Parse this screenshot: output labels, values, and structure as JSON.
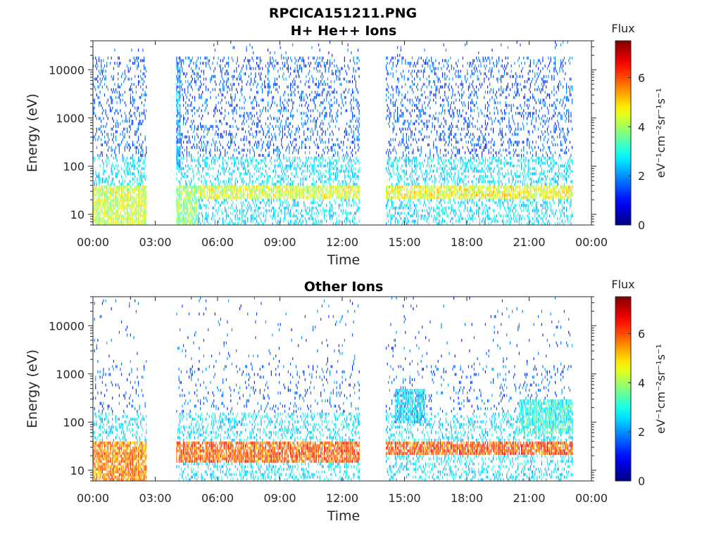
{
  "figure_title": "RPCICA151211.PNG",
  "chart_data": [
    {
      "type": "heatmap",
      "title": "H+ He++ Ions",
      "xlabel": "Time",
      "ylabel": "Energy (eV)",
      "x_tick_labels": [
        "00:00",
        "03:00",
        "06:00",
        "09:00",
        "12:00",
        "15:00",
        "18:00",
        "21:00",
        "00:00"
      ],
      "x_range_hours": [
        0,
        24
      ],
      "y_scale": "log",
      "y_range": [
        6,
        40000
      ],
      "y_tick_values": [
        10,
        100,
        1000,
        10000
      ],
      "y_tick_labels": [
        "10",
        "100",
        "1000",
        "10000"
      ],
      "colorbar": {
        "title": "Flux",
        "label": "eV⁻¹cm⁻²sr⁻¹s⁻¹",
        "range": [
          0,
          7.5
        ],
        "tick_values": [
          0,
          2,
          4,
          6
        ],
        "tick_labels": [
          "0",
          "2",
          "4",
          "6"
        ],
        "colormap": "jet"
      },
      "data_gaps_hours": [
        [
          2.6,
          4.0
        ],
        [
          12.85,
          14.05
        ]
      ],
      "data_end_hours": 23.1,
      "bands": [
        {
          "t0": 0.0,
          "t1": 2.6,
          "e0": 6,
          "e1": 40,
          "flux": 4.3
        },
        {
          "t0": 4.0,
          "t1": 5.0,
          "e0": 6,
          "e1": 40,
          "flux": 3.8
        },
        {
          "t0": 5.0,
          "t1": 12.85,
          "e0": 20,
          "e1": 40,
          "flux": 4.4
        },
        {
          "t0": 14.05,
          "t1": 23.1,
          "e0": 20,
          "e1": 40,
          "flux": 4.6
        },
        {
          "t0": 4.0,
          "t1": 4.2,
          "e0": 100,
          "e1": 20000,
          "flux": 2.0
        }
      ]
    },
    {
      "type": "heatmap",
      "title": "Other Ions",
      "xlabel": "Time",
      "ylabel": "Energy (eV)",
      "x_tick_labels": [
        "00:00",
        "03:00",
        "06:00",
        "09:00",
        "12:00",
        "15:00",
        "18:00",
        "21:00",
        "00:00"
      ],
      "x_range_hours": [
        0,
        24
      ],
      "y_scale": "log",
      "y_range": [
        6,
        40000
      ],
      "y_tick_values": [
        10,
        100,
        1000,
        10000
      ],
      "y_tick_labels": [
        "10",
        "100",
        "1000",
        "10000"
      ],
      "colorbar": {
        "title": "Flux",
        "label": "eV⁻¹cm⁻²sr⁻¹s⁻¹",
        "range": [
          0,
          7.5
        ],
        "tick_values": [
          0,
          2,
          4,
          6
        ],
        "tick_labels": [
          "0",
          "2",
          "4",
          "6"
        ],
        "colormap": "jet"
      },
      "data_gaps_hours": [
        [
          2.6,
          4.0
        ],
        [
          12.85,
          14.05
        ]
      ],
      "data_end_hours": 23.1,
      "bands": [
        {
          "t0": 0.0,
          "t1": 2.6,
          "e0": 6,
          "e1": 40,
          "flux": 5.6
        },
        {
          "t0": 4.0,
          "t1": 12.85,
          "e0": 15,
          "e1": 40,
          "flux": 5.9
        },
        {
          "t0": 14.05,
          "t1": 23.1,
          "e0": 20,
          "e1": 40,
          "flux": 6.0
        },
        {
          "t0": 14.5,
          "t1": 16.0,
          "e0": 100,
          "e1": 500,
          "flux": 2.4
        },
        {
          "t0": 20.5,
          "t1": 23.1,
          "e0": 60,
          "e1": 300,
          "flux": 3.0
        }
      ]
    }
  ]
}
